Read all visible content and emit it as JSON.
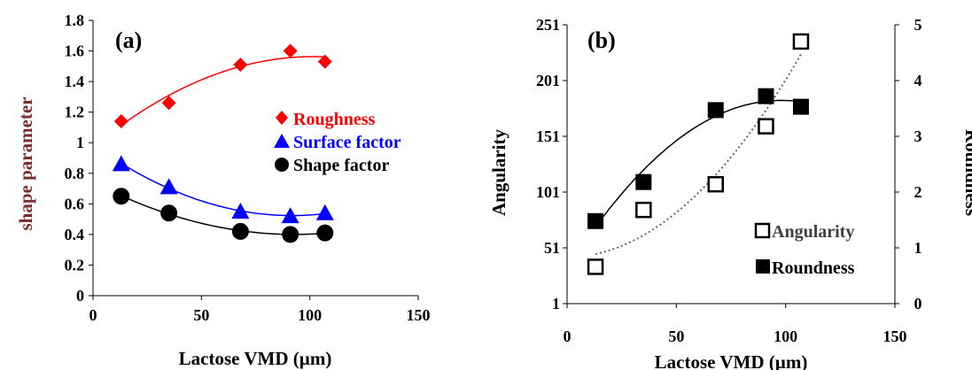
{
  "chart_data": [
    {
      "panel_label": "(a)",
      "type": "scatter",
      "xlabel": "Lactose VMD (µm)",
      "ylabel": "shape parameter",
      "xlim": [
        0,
        150
      ],
      "ylim": [
        0,
        1.8
      ],
      "x_ticks": [
        "0",
        "50",
        "100",
        "150"
      ],
      "y_ticks": [
        "0",
        "0.2",
        "0.4",
        "0.6",
        "0.8",
        "1",
        "1.2",
        "1.4",
        "1.6",
        "1.8"
      ],
      "legend_position": "right",
      "series": [
        {
          "name": "Roughness",
          "marker": "diamond",
          "color": "#ff0000",
          "trendline": "polynomial",
          "x": [
            13,
            35,
            68,
            91,
            107
          ],
          "y": [
            1.14,
            1.26,
            1.51,
            1.6,
            1.53
          ]
        },
        {
          "name": "Surface factor",
          "marker": "triangle",
          "color": "#0000ff",
          "trendline": "polynomial",
          "x": [
            13,
            35,
            68,
            91,
            107
          ],
          "y": [
            0.86,
            0.71,
            0.55,
            0.52,
            0.54
          ]
        },
        {
          "name": "Shape factor",
          "marker": "circle",
          "color": "#000000",
          "trendline": "polynomial",
          "x": [
            13,
            35,
            68,
            91,
            107
          ],
          "y": [
            0.65,
            0.54,
            0.42,
            0.4,
            0.41
          ]
        }
      ]
    },
    {
      "panel_label": "(b)",
      "type": "scatter",
      "xlabel": "Lactose VMD (µm)",
      "ylabel": "Angularity",
      "ylabel_right": "Roundness",
      "xlim": [
        0,
        150
      ],
      "ylim": [
        1,
        251
      ],
      "ylim_right": [
        0,
        5
      ],
      "x_ticks": [
        "0",
        "50",
        "100",
        "150"
      ],
      "y_ticks": [
        "1",
        "51",
        "101",
        "151",
        "201",
        "251"
      ],
      "y_ticks_right": [
        "0",
        "1",
        "2",
        "3",
        "4",
        "5"
      ],
      "legend_position": "bottom-right",
      "series": [
        {
          "name": "Angularity",
          "axis": "left",
          "marker": "open-square",
          "color": "#000000",
          "trendline": "dotted polynomial",
          "x": [
            13,
            35,
            68,
            91,
            107
          ],
          "y": [
            34,
            85,
            108,
            160,
            236
          ]
        },
        {
          "name": "Roundness",
          "axis": "right",
          "marker": "filled-square",
          "color": "#000000",
          "trendline": "polynomial",
          "x": [
            13,
            35,
            68,
            91,
            107
          ],
          "y": [
            1.48,
            2.18,
            3.47,
            3.72,
            3.53
          ]
        }
      ]
    }
  ]
}
